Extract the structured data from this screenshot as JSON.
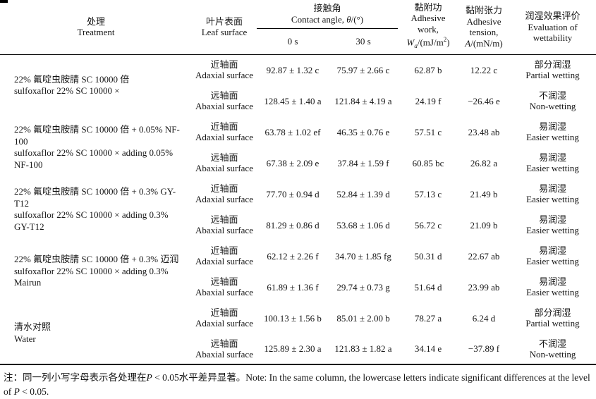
{
  "table": {
    "header": {
      "treatment": {
        "zh": "处理",
        "en": "Treatment"
      },
      "leaf_surface": {
        "zh": "叶片表面",
        "en": "Leaf surface"
      },
      "contact_angle": {
        "zh": "接触角",
        "en_pre": "Contact angle, ",
        "symbol": "θ",
        "unit": "/(°)",
        "sub_0s": "0 s",
        "sub_30s": "30 s"
      },
      "adhesive_work": {
        "zh": "黏附功",
        "en_line1": "Adhesive",
        "en_line2": "work,",
        "symbol": "W",
        "symbol_sub": "a",
        "unit_pre": "/(mJ/m",
        "unit_sup": "2",
        "unit_post": ")"
      },
      "adhesive_tension": {
        "zh": "黏附张力",
        "en_line1": "Adhesive",
        "en_line2": "tension,",
        "symbol": "A",
        "unit": "/(mN/m)"
      },
      "wettability": {
        "zh": "润湿效果评价",
        "en_line1": "Evaluation of",
        "en_line2": "wettability"
      }
    },
    "rows": [
      {
        "treatment_zh": "22% 氟啶虫胺腈 SC 10000 倍",
        "treatment_en": "sulfoxaflor 22% SC 10000 ×",
        "surfaces": [
          {
            "surface_zh": "近轴面",
            "surface_en": "Adaxial surface",
            "angle_0s": "92.87 ± 1.32 c",
            "angle_30s": "75.97 ± 2.66 c",
            "work": "62.87 b",
            "tension": "12.22 c",
            "wet_zh": "部分润湿",
            "wet_en": "Partial wetting"
          },
          {
            "surface_zh": "远轴面",
            "surface_en": "Abaxial surface",
            "angle_0s": "128.45 ± 1.40 a",
            "angle_30s": "121.84 ± 4.19 a",
            "work": "24.19 f",
            "tension": "−26.46 e",
            "wet_zh": "不润湿",
            "wet_en": "Non-wetting"
          }
        ]
      },
      {
        "treatment_zh": "22% 氟啶虫胺腈 SC 10000 倍 + 0.05% NF-100",
        "treatment_en": "sulfoxaflor 22% SC 10000 × adding 0.05% NF-100",
        "surfaces": [
          {
            "surface_zh": "近轴面",
            "surface_en": "Adaxial surface",
            "angle_0s": "63.78 ± 1.02 ef",
            "angle_30s": "46.35 ± 0.76 e",
            "work": "57.51 c",
            "tension": "23.48 ab",
            "wet_zh": "易润湿",
            "wet_en": "Easier wetting"
          },
          {
            "surface_zh": "远轴面",
            "surface_en": "Abaxial surface",
            "angle_0s": "67.38 ± 2.09 e",
            "angle_30s": "37.84 ± 1.59 f",
            "work": "60.85 bc",
            "tension": "26.82 a",
            "wet_zh": "易润湿",
            "wet_en": "Easier wetting"
          }
        ]
      },
      {
        "treatment_zh": "22% 氟啶虫胺腈 SC 10000 倍 + 0.3% GY-T12",
        "treatment_en": "sulfoxaflor 22% SC 10000 × adding 0.3% GY-T12",
        "surfaces": [
          {
            "surface_zh": "近轴面",
            "surface_en": "Adaxial surface",
            "angle_0s": "77.70 ± 0.94 d",
            "angle_30s": "52.84 ± 1.39 d",
            "work": "57.13 c",
            "tension": "21.49 b",
            "wet_zh": "易润湿",
            "wet_en": "Easier wetting"
          },
          {
            "surface_zh": "远轴面",
            "surface_en": "Abaxial surface",
            "angle_0s": "81.29 ± 0.86 d",
            "angle_30s": "53.68 ± 1.06 d",
            "work": "56.72 c",
            "tension": "21.09 b",
            "wet_zh": "易润湿",
            "wet_en": "Easier wetting"
          }
        ]
      },
      {
        "treatment_zh": "22% 氟啶虫胺腈 SC 10000 倍 + 0.3% 迈润",
        "treatment_en": "sulfoxaflor 22% SC 10000 × adding 0.3% Mairun",
        "surfaces": [
          {
            "surface_zh": "近轴面",
            "surface_en": "Adaxial surface",
            "angle_0s": "62.12 ± 2.26 f",
            "angle_30s": "34.70 ± 1.85 fg",
            "work": "50.31 d",
            "tension": "22.67 ab",
            "wet_zh": "易润湿",
            "wet_en": "Easier wetting"
          },
          {
            "surface_zh": "远轴面",
            "surface_en": "Abaxial surface",
            "angle_0s": "61.89 ± 1.36 f",
            "angle_30s": "29.74 ± 0.73 g",
            "work": "51.64 d",
            "tension": "23.99 ab",
            "wet_zh": "易润湿",
            "wet_en": "Easier wetting"
          }
        ]
      },
      {
        "treatment_zh": "清水对照",
        "treatment_en": "Water",
        "surfaces": [
          {
            "surface_zh": "近轴面",
            "surface_en": "Adaxial surface",
            "angle_0s": "100.13 ± 1.56 b",
            "angle_30s": "85.01 ± 2.00 b",
            "work": "78.27 a",
            "tension": "6.24 d",
            "wet_zh": "部分润湿",
            "wet_en": "Partial wetting"
          },
          {
            "surface_zh": "远轴面",
            "surface_en": "Abaxial surface",
            "angle_0s": "125.89 ± 2.30 a",
            "angle_30s": "121.83 ± 1.82 a",
            "work": "34.14 e",
            "tension": "−37.89 f",
            "wet_zh": "不润湿",
            "wet_en": "Non-wetting"
          }
        ]
      }
    ],
    "note": {
      "seg1": "注：同一列小写字母表示各处理在",
      "p1": "P",
      "seg2": " < 0.05水平差异显著。Note: In the same column, the lowercase letters indicate significant differences at the level of ",
      "p2": "P",
      "seg3": " < 0.05."
    }
  }
}
